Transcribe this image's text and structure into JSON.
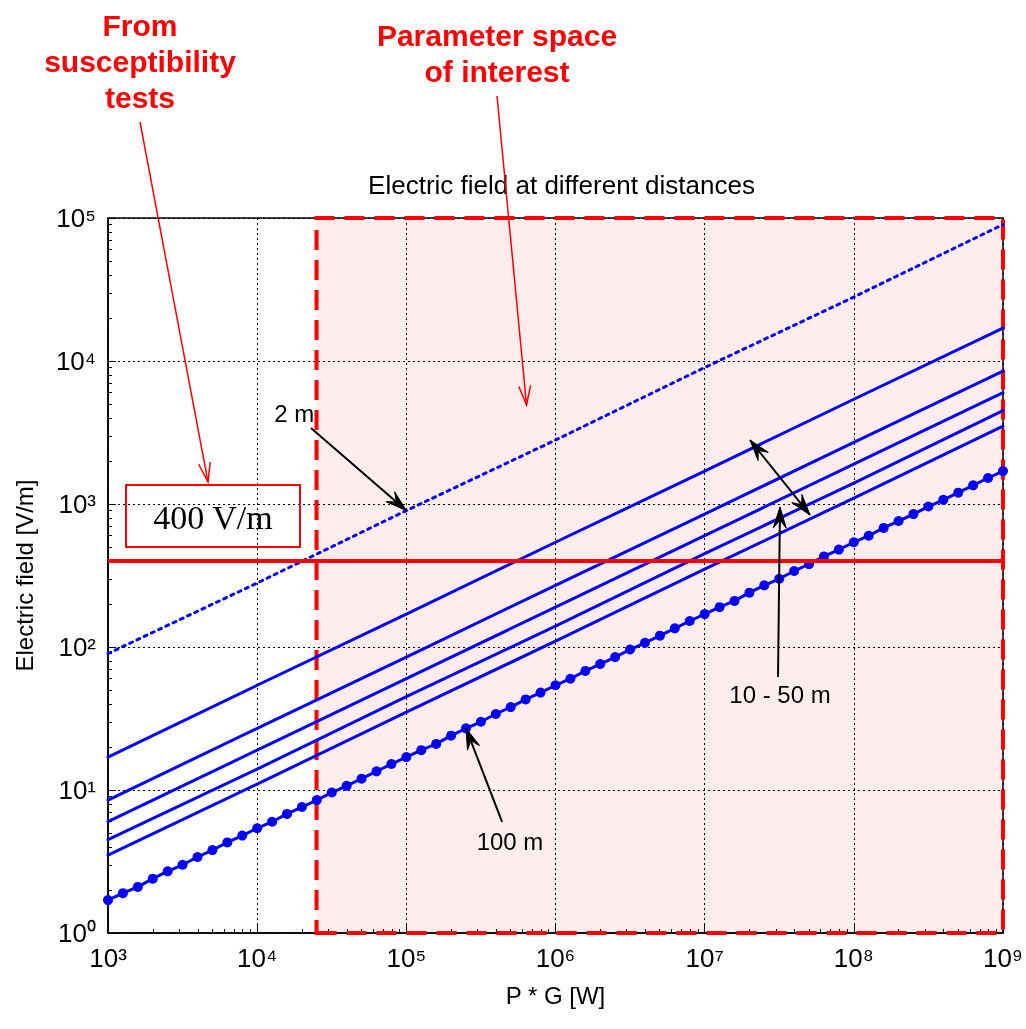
{
  "chart_data": {
    "type": "line",
    "title": "Electric field at different distances",
    "xlabel": "P * G [W]",
    "ylabel": "Electric field [V/m]",
    "log": "xy",
    "xlim": [
      1000,
      1000000000
    ],
    "ylim": [
      1,
      100000
    ],
    "xticks": [
      {
        "value": 1000,
        "label": "10³"
      },
      {
        "value": 10000,
        "label": "10⁴"
      },
      {
        "value": 100000,
        "label": "10⁵"
      },
      {
        "value": 1000000,
        "label": "10⁶"
      },
      {
        "value": 10000000,
        "label": "10⁷"
      },
      {
        "value": 100000000,
        "label": "10⁸"
      },
      {
        "value": 1000000000,
        "label": "10⁹"
      }
    ],
    "yticks": [
      {
        "value": 1,
        "label": "10⁰"
      },
      {
        "value": 10,
        "label": "10¹"
      },
      {
        "value": 100,
        "label": "10²"
      },
      {
        "value": 1000,
        "label": "10³"
      },
      {
        "value": 10000,
        "label": "10⁴"
      },
      {
        "value": 100000,
        "label": "10⁵"
      }
    ],
    "grid": true,
    "marker": "none",
    "line_style": "solid",
    "x": [
      1000,
      10000,
      100000,
      1000000,
      10000000,
      100000000,
      1000000000
    ],
    "series": [
      {
        "color": "#0000ff",
        "line_style": "dotted",
        "values": [
          90,
          280,
          900,
          2800,
          9000,
          28000,
          90000
        ]
      },
      {
        "color": "#0000ff",
        "values": [
          17,
          54,
          170,
          540,
          1700,
          5400,
          17000
        ]
      },
      {
        "color": "#0000ff",
        "values": [
          8.5,
          27,
          85,
          270,
          850,
          2700,
          8500
        ]
      },
      {
        "color": "#0000ff",
        "values": [
          6,
          19,
          60,
          190,
          600,
          1900,
          6000
        ]
      },
      {
        "color": "#0000ff",
        "values": [
          4.5,
          14,
          45,
          140,
          450,
          1400,
          4500
        ]
      },
      {
        "color": "#0000ff",
        "values": [
          3.5,
          11,
          35,
          110,
          350,
          1100,
          3500
        ]
      },
      {
        "color": "#0000ff",
        "marker": "circle",
        "x": [
          1000,
          1259,
          1585,
          1995,
          2512,
          3162,
          3981,
          5012,
          6310,
          7943,
          10000,
          12590,
          15850,
          19950,
          25120,
          31620,
          39810,
          50120,
          63100,
          79430,
          100000,
          125900,
          158500,
          199500,
          251200,
          316200,
          398100,
          501200,
          631000,
          794300,
          1000000,
          1259000,
          1585000,
          1995000,
          2512000,
          3162000,
          3981000,
          5012000,
          6310000,
          7943000,
          10000000,
          12590000,
          15850000,
          19950000,
          25120000,
          31620000,
          39810000,
          50120000,
          63100000,
          79430000,
          100000000,
          125900000,
          158500000,
          199500000,
          251200000,
          316200000,
          398100000,
          501200000,
          631000000,
          794300000,
          1000000000
        ],
        "values": [
          1.7,
          1.9,
          2.1,
          2.4,
          2.7,
          3.0,
          3.4,
          3.8,
          4.3,
          4.8,
          5.4,
          6.0,
          6.8,
          7.6,
          8.5,
          9.6,
          10.7,
          12.0,
          13.5,
          15.2,
          17,
          19,
          21,
          24,
          27,
          30,
          34,
          38,
          43,
          48,
          54,
          60,
          68,
          76,
          85,
          96,
          107,
          120,
          135,
          152,
          170,
          190,
          210,
          240,
          270,
          300,
          340,
          380,
          430,
          480,
          540,
          600,
          680,
          760,
          850,
          960,
          1070,
          1200,
          1350,
          1520,
          1700
        ]
      }
    ],
    "ref_lines": [
      {
        "axis": "y",
        "value": 400,
        "label": "400 V/m",
        "color": "#ff0000"
      }
    ],
    "bands": [
      {
        "axis": "x",
        "from": 25000,
        "to": 1000000000,
        "label": "Parameter space of interest",
        "color": "#ff0000"
      }
    ],
    "annotations": [
      "From susceptibility tests",
      {
        "text": "2 m",
        "x": 100000,
        "y": 900
      },
      "10 - 50 m",
      {
        "text": "100 m",
        "x": 251200,
        "y": 27
      }
    ]
  }
}
